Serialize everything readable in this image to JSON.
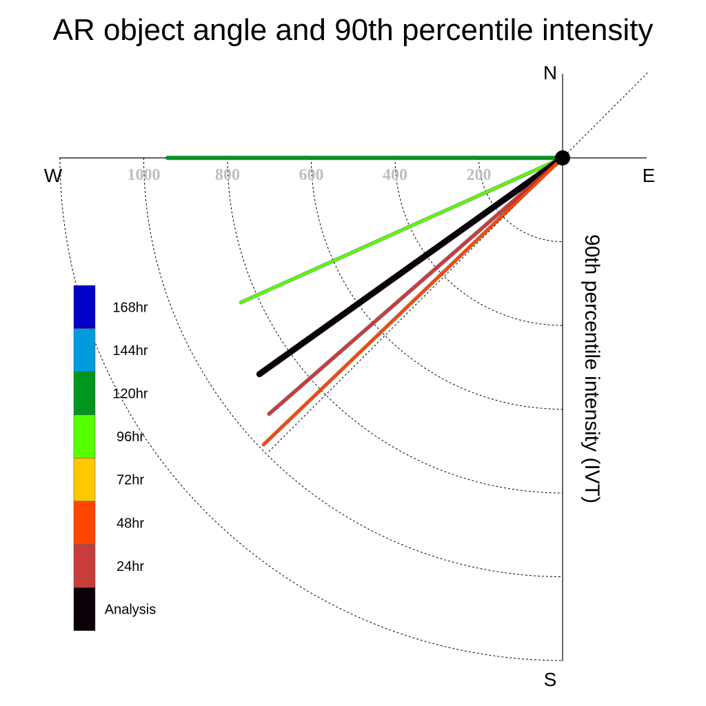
{
  "chart_data": {
    "type": "polar-line",
    "title": "AR object angle and 90th percentile intensity",
    "ylabel": "90th percentile intensity (IVT)",
    "compass": {
      "north": "N",
      "south": "S",
      "east": "E",
      "west": "W"
    },
    "radial_ticks": [
      200,
      400,
      600,
      800,
      1000
    ],
    "radial_circles": [
      200,
      400,
      600,
      800,
      1000,
      1200
    ],
    "rlim": [
      0,
      1200
    ],
    "angle_reference": "degrees clockwise from North",
    "series": [
      {
        "name": "120hr",
        "angle_deg": 270,
        "intensity": 943
      },
      {
        "name": "96hr",
        "angle_deg": 245.8,
        "intensity": 842
      },
      {
        "name": "Analysis",
        "angle_deg": 234.5,
        "intensity": 889
      },
      {
        "name": "24hr",
        "angle_deg": 228.9,
        "intensity": 930
      },
      {
        "name": "48hr",
        "angle_deg": 226.2,
        "intensity": 989
      }
    ],
    "legend": [
      {
        "label": "168hr",
        "color": "#0000c8"
      },
      {
        "label": "144hr",
        "color": "#009bdc"
      },
      {
        "label": "120hr",
        "color": "#00961e"
      },
      {
        "label": "96hr",
        "color": "#55ff00"
      },
      {
        "label": "72hr",
        "color": "#ffc800"
      },
      {
        "label": "48hr",
        "color": "#ff4600"
      },
      {
        "label": "24hr",
        "color": "#c83c3c"
      },
      {
        "label": "Analysis",
        "color": "#0a0008"
      }
    ]
  }
}
